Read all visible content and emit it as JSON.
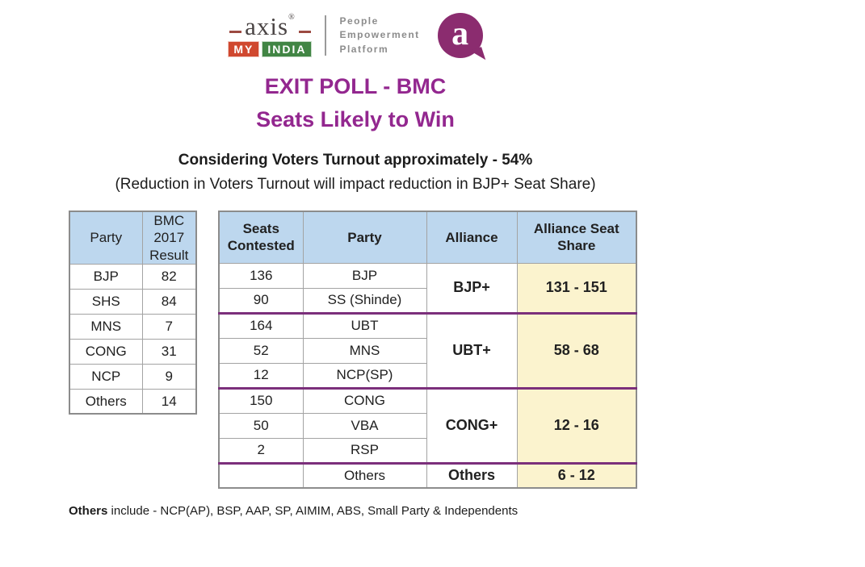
{
  "logo": {
    "brand_word": "axis",
    "brand_reg": "®",
    "badge_my": "MY",
    "badge_india": "INDIA",
    "tagline_lines": [
      "People",
      "Empowerment",
      "Platform"
    ],
    "bubble_letter": "a"
  },
  "title": {
    "line1": "EXIT POLL - BMC",
    "line2": "Seats Likely to Win"
  },
  "subtitle": {
    "line1": "Considering Voters Turnout approximately - 54%",
    "line2": "(Reduction in Voters Turnout will impact reduction in BJP+ Seat Share)"
  },
  "left_table": {
    "headers": [
      "Party",
      "BMC 2017 Result"
    ],
    "rows": [
      {
        "party": "BJP",
        "result": "82"
      },
      {
        "party": "SHS",
        "result": "84"
      },
      {
        "party": "MNS",
        "result": "7"
      },
      {
        "party": "CONG",
        "result": "31"
      },
      {
        "party": "NCP",
        "result": "9"
      },
      {
        "party": "Others",
        "result": "14"
      }
    ]
  },
  "right_table": {
    "headers": [
      "Seats Contested",
      "Party",
      "Alliance",
      "Alliance Seat Share"
    ],
    "groups": [
      {
        "alliance": "BJP+",
        "seat_share": "131 - 151",
        "rows": [
          {
            "seats": "136",
            "party": "BJP"
          },
          {
            "seats": "90",
            "party": "SS (Shinde)"
          }
        ]
      },
      {
        "alliance": "UBT+",
        "seat_share": "58 - 68",
        "rows": [
          {
            "seats": "164",
            "party": "UBT"
          },
          {
            "seats": "52",
            "party": "MNS"
          },
          {
            "seats": "12",
            "party": "NCP(SP)"
          }
        ]
      },
      {
        "alliance": "CONG+",
        "seat_share": "12 - 16",
        "rows": [
          {
            "seats": "150",
            "party": "CONG"
          },
          {
            "seats": "50",
            "party": "VBA"
          },
          {
            "seats": "2",
            "party": "RSP"
          }
        ]
      },
      {
        "alliance": "Others",
        "seat_share": "6 - 12",
        "rows": [
          {
            "seats": "",
            "party": "Others"
          }
        ]
      }
    ]
  },
  "footnote": {
    "bold": "Others",
    "rest": " include - NCP(AP), BSP, AAP, SP, AIMIM, ABS, Small Party & Independents"
  },
  "colors": {
    "header_bg": "#BDD7EE",
    "highlight_bg": "#FBF3CE",
    "group_divider": "#7B2F7B",
    "title_text": "#93278F",
    "bubble_bg": "#8B2C6F",
    "badge_my_bg": "#D0482F",
    "badge_india_bg": "#418544"
  }
}
